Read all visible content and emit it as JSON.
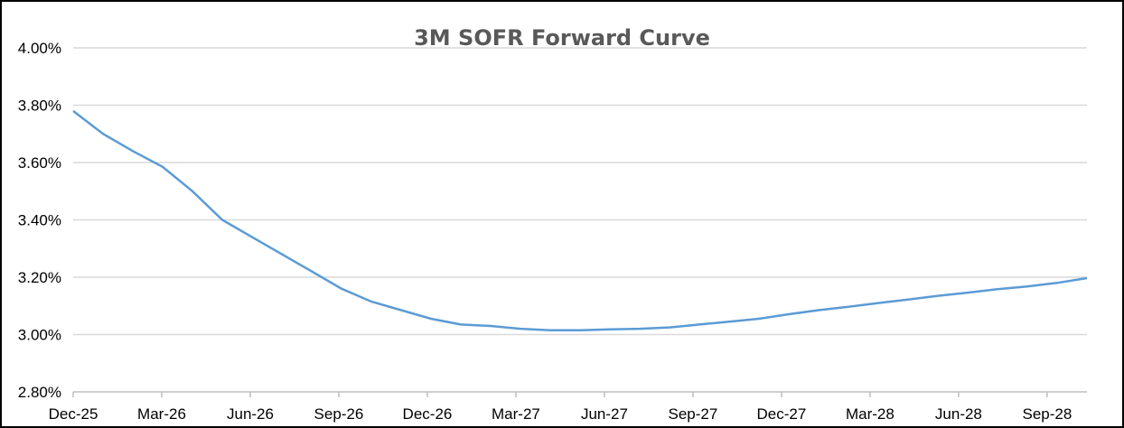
{
  "chart_data": {
    "type": "line",
    "title": "3M SOFR Forward Curve",
    "xlabel": "",
    "ylabel": "",
    "ylim": [
      2.8,
      4.0
    ],
    "y_ticks": [
      "2.80%",
      "3.00%",
      "3.20%",
      "3.40%",
      "3.60%",
      "3.80%",
      "4.00%"
    ],
    "x_ticks": [
      "Dec-25",
      "Mar-26",
      "Jun-26",
      "Sep-26",
      "Dec-26",
      "Mar-27",
      "Jun-27",
      "Sep-27",
      "Dec-27",
      "Mar-28",
      "Jun-28",
      "Sep-28"
    ],
    "grid": "horizontal",
    "line_color": "#5B9BD5",
    "x": [
      "Dec-25",
      "Jan-26",
      "Feb-26",
      "Mar-26",
      "Apr-26",
      "May-26",
      "Jun-26",
      "Jul-26",
      "Aug-26",
      "Sep-26",
      "Oct-26",
      "Nov-26",
      "Dec-26",
      "Jan-27",
      "Feb-27",
      "Mar-27",
      "Apr-27",
      "May-27",
      "Jun-27",
      "Jul-27",
      "Aug-27",
      "Sep-27",
      "Oct-27",
      "Nov-27",
      "Dec-27",
      "Jan-28",
      "Feb-28",
      "Mar-28",
      "Apr-28",
      "May-28",
      "Jun-28",
      "Jul-28",
      "Aug-28",
      "Sep-28",
      "Oct-28"
    ],
    "values": [
      3.78,
      3.7,
      3.64,
      3.585,
      3.5,
      3.4,
      3.34,
      3.28,
      3.22,
      3.16,
      3.115,
      3.085,
      3.055,
      3.035,
      3.03,
      3.02,
      3.015,
      3.015,
      3.018,
      3.02,
      3.025,
      3.035,
      3.045,
      3.055,
      3.071,
      3.085,
      3.097,
      3.11,
      3.122,
      3.135,
      3.146,
      3.158,
      3.168,
      3.18,
      3.197
    ]
  }
}
